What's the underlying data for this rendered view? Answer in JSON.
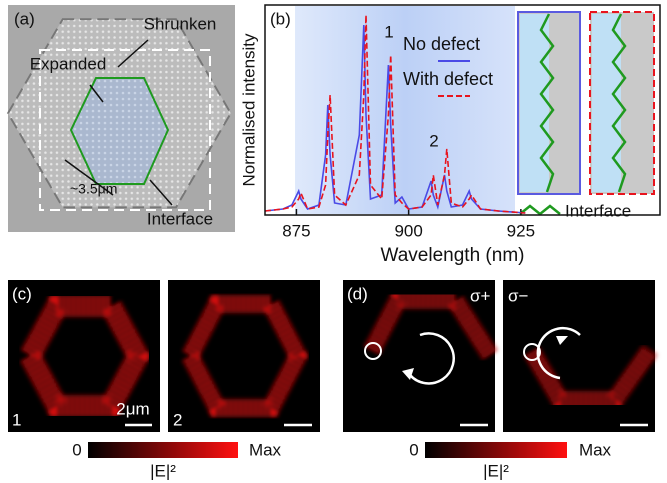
{
  "panels": {
    "a": {
      "label": "(a)",
      "shrunken": "Shrunken",
      "expanded": "Expanded",
      "scale": "~3.5μm",
      "interface": "Interface"
    },
    "b": {
      "label": "(b)",
      "inset_legend": "Interface"
    },
    "c": {
      "label": "(c)",
      "image1": "1",
      "image2": "2",
      "scale": "2μm",
      "cbar_min": "0",
      "cbar_max": "Max",
      "cbar_label": "|E|²"
    },
    "d": {
      "label": "(d)",
      "image1": "σ+",
      "image2": "σ−",
      "cbar_min": "0",
      "cbar_max": "Max",
      "cbar_label": "|E|²"
    }
  },
  "chart_data": {
    "type": "line",
    "xlabel": "Wavelength (nm)",
    "ylabel": "Normalised intensity",
    "annotations": [
      "1",
      "2"
    ],
    "x": [
      868,
      872,
      874,
      875.5,
      876,
      877.5,
      880,
      881.5,
      882,
      882.5,
      883.5,
      886,
      889,
      890,
      890.5,
      891.5,
      894,
      895.5,
      896,
      897,
      898.5,
      900,
      903,
      905,
      905.5,
      906.5,
      908,
      908.5,
      909.5,
      912,
      913.5,
      914,
      916,
      920,
      926
    ],
    "series": [
      {
        "name": "No defect",
        "color": "#4a4ae6",
        "dash": false,
        "values": [
          0.02,
          0.03,
          0.05,
          0.12,
          0.08,
          0.03,
          0.05,
          0.3,
          0.55,
          0.3,
          0.06,
          0.05,
          0.4,
          0.95,
          0.5,
          0.08,
          0.1,
          0.75,
          0.45,
          0.06,
          0.09,
          0.03,
          0.04,
          0.17,
          0.1,
          0.04,
          0.2,
          0.12,
          0.04,
          0.05,
          0.12,
          0.08,
          0.03,
          0.02,
          0.01
        ]
      },
      {
        "name": "With defect",
        "color": "#e8141e",
        "dash": true,
        "values": [
          0.02,
          0.03,
          0.04,
          0.08,
          0.11,
          0.03,
          0.04,
          0.15,
          0.4,
          0.6,
          0.1,
          0.05,
          0.2,
          0.6,
          1.0,
          0.15,
          0.08,
          0.5,
          0.8,
          0.1,
          0.06,
          0.03,
          0.04,
          0.1,
          0.2,
          0.05,
          0.2,
          0.33,
          0.06,
          0.04,
          0.08,
          0.1,
          0.03,
          0.02,
          0.01
        ]
      }
    ],
    "xlim": [
      868,
      956
    ],
    "xticks": [
      875,
      900,
      925
    ],
    "ylim": [
      0,
      1.05
    ]
  }
}
